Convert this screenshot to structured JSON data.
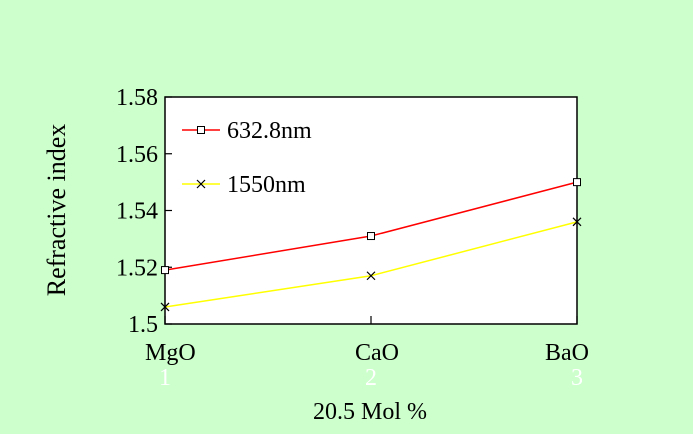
{
  "background_color": "#ccffcc",
  "chart_data": {
    "type": "line",
    "categories": [
      "MgO",
      "CaO",
      "BaO"
    ],
    "x_index_labels": [
      "1",
      "2",
      "3"
    ],
    "xlabel": "20.5 Mol %",
    "ylabel": "Refractive index",
    "ylim": [
      1.5,
      1.58
    ],
    "yticks": [
      "1.5",
      "1.52",
      "1.54",
      "1.56",
      "1.58"
    ],
    "ytick_values": [
      1.5,
      1.52,
      1.54,
      1.56,
      1.58
    ],
    "grid": false,
    "legend_position": "top-left",
    "series": [
      {
        "name": "632.8nm",
        "marker": "square",
        "color": "#ff0000",
        "values": [
          1.519,
          1.531,
          1.55
        ]
      },
      {
        "name": "1550nm",
        "marker": "x",
        "color": "#ffff00",
        "values": [
          1.506,
          1.517,
          1.536
        ]
      }
    ]
  }
}
